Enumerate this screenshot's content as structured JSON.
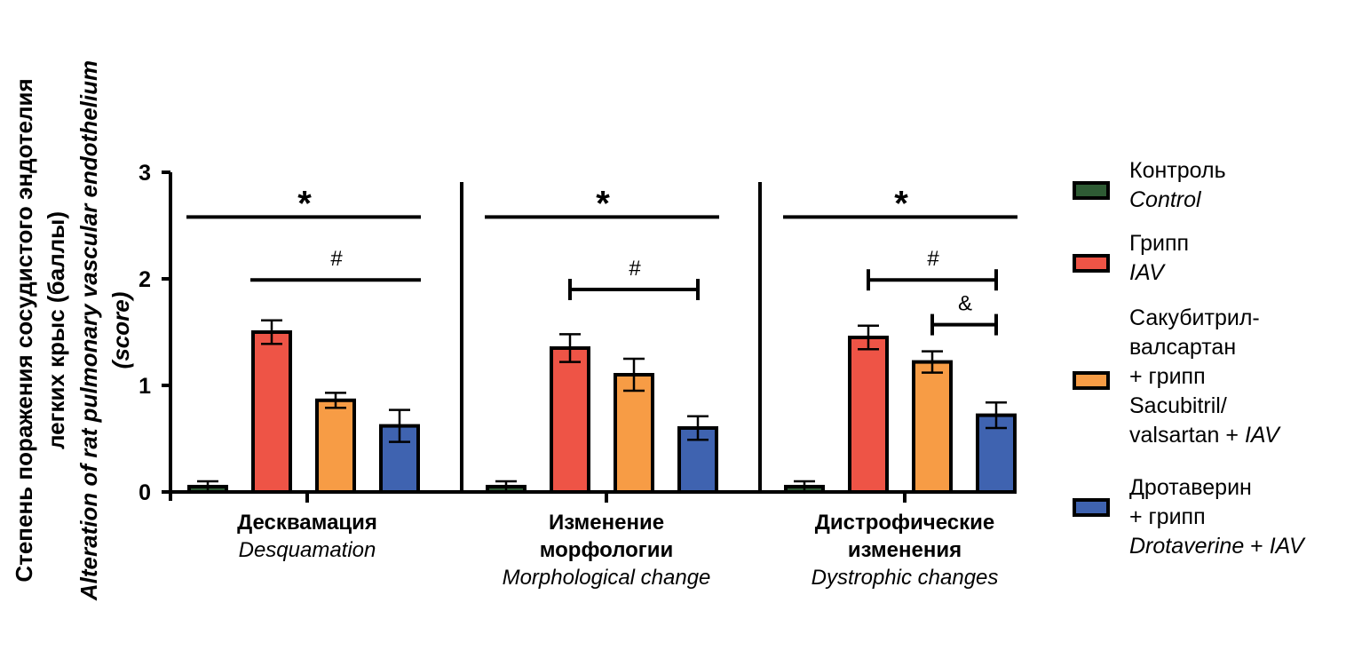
{
  "chart_data": {
    "type": "bar",
    "ylabel_ru": "Степень поражения сосудистого эндотелия легких крыс (баллы)",
    "ylabel_en": "Alteration of rat pulmonary vascular endothelium (score)",
    "ylim": [
      0,
      3
    ],
    "yticks": [
      "0",
      "1",
      "2",
      "3"
    ],
    "groups": [
      {
        "label_ru": "Десквамация",
        "label_en": "Desquamation"
      },
      {
        "label_ru": "Изменение морфологии",
        "label_en": "Morphological change"
      },
      {
        "label_ru": "Дистрофические изменения",
        "label_en": "Dystrophic changes"
      }
    ],
    "series": [
      {
        "name_ru": "Контроль",
        "name_en": "Control",
        "color": "#2e5b34",
        "values": [
          0.05,
          0.05,
          0.05
        ],
        "errors": [
          0.05,
          0.05,
          0.05
        ]
      },
      {
        "name_ru": "Грипп",
        "name_en": "IAV",
        "color": "#ee5446",
        "values": [
          1.5,
          1.35,
          1.45
        ],
        "errors": [
          0.11,
          0.13,
          0.11
        ]
      },
      {
        "name_ru": "Сакубитрил-валсартан + грипп",
        "name_en": "Sacubitril/valsartan + IAV",
        "color": "#f79c45",
        "values": [
          0.86,
          1.1,
          1.22
        ],
        "errors": [
          0.07,
          0.15,
          0.1
        ]
      },
      {
        "name_ru": "Дротаверин + грипп",
        "name_en": "Drotaverine + IAV",
        "color": "#3f63b0",
        "values": [
          0.62,
          0.6,
          0.72
        ],
        "errors": [
          0.15,
          0.11,
          0.12
        ]
      }
    ],
    "annotations": [
      {
        "group": 0,
        "symbol": "*",
        "from_series": 0,
        "to_series": 3,
        "y": 2.58,
        "caps": false
      },
      {
        "group": 0,
        "symbol": "#",
        "from_series": 1,
        "to_series": 3,
        "y": 1.99,
        "caps": false
      },
      {
        "group": 1,
        "symbol": "*",
        "from_series": 0,
        "to_series": 3,
        "y": 2.58,
        "caps": false
      },
      {
        "group": 1,
        "symbol": "#",
        "from_series": 1,
        "to_series": 3,
        "y": 1.9,
        "caps": true
      },
      {
        "group": 2,
        "symbol": "*",
        "from_series": 0,
        "to_series": 3,
        "y": 2.58,
        "caps": false
      },
      {
        "group": 2,
        "symbol": "#",
        "from_series": 1,
        "to_series": 3,
        "y": 1.99,
        "caps": true
      },
      {
        "group": 2,
        "symbol": "&",
        "from_series": 2,
        "to_series": 3,
        "y": 1.57,
        "caps": true
      }
    ]
  },
  "legend": {
    "items": [
      {
        "lines": [
          {
            "text": "Контроль",
            "italic": false
          },
          {
            "text": "Control",
            "italic": true
          }
        ]
      },
      {
        "lines": [
          {
            "text": "Грипп",
            "italic": false
          },
          {
            "text": "IAV",
            "italic": true
          }
        ]
      },
      {
        "lines": [
          {
            "text": "Сакубитрил-",
            "italic": false
          },
          {
            "text": "валсартан",
            "italic": false
          },
          {
            "text": "+ грипп",
            "italic": false
          },
          {
            "text": "Sacubitril/",
            "italic": false
          },
          {
            "text": "valsartan + ",
            "italic": false,
            "tail": "IAV"
          }
        ]
      },
      {
        "lines": [
          {
            "text": "Дротаверин",
            "italic": false
          },
          {
            "text": "+ грипп",
            "italic": false
          },
          {
            "text": "Drotaverine",
            "italic": true,
            "tail_plain": " + ",
            "tail": "IAV"
          }
        ]
      }
    ]
  }
}
